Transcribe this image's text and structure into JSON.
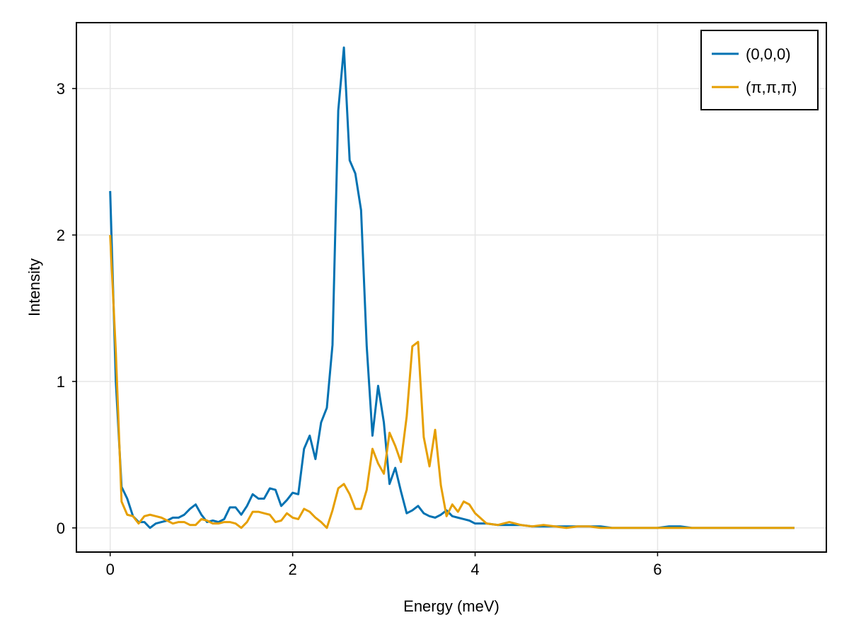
{
  "chart_data": {
    "type": "line",
    "title": "",
    "xlabel": "Energy (meV)",
    "ylabel": "Intensity",
    "xlim": [
      -0.37,
      7.85
    ],
    "ylim": [
      -0.165,
      3.45
    ],
    "xticks": [
      0,
      2,
      4,
      6
    ],
    "xtick_labels": [
      "0",
      "2",
      "4",
      "6"
    ],
    "yticks": [
      0,
      1,
      2,
      3
    ],
    "ytick_labels": [
      "0",
      "1",
      "2",
      "3"
    ],
    "grid": true,
    "legend_position": "top-right",
    "colors": {
      "series_0": "#0072b2",
      "series_1": "#e69f00",
      "grid": "#e6e6e6",
      "frame": "#000000"
    },
    "series": [
      {
        "name": "(0,0,0)",
        "color": "#0072b2",
        "x": [
          0,
          0.062,
          0.125,
          0.187,
          0.25,
          0.312,
          0.375,
          0.437,
          0.5,
          0.562,
          0.625,
          0.687,
          0.75,
          0.812,
          0.875,
          0.937,
          1.0,
          1.062,
          1.125,
          1.187,
          1.25,
          1.312,
          1.375,
          1.437,
          1.5,
          1.562,
          1.625,
          1.687,
          1.75,
          1.812,
          1.875,
          1.937,
          2.0,
          2.062,
          2.125,
          2.187,
          2.25,
          2.312,
          2.375,
          2.437,
          2.5,
          2.562,
          2.625,
          2.687,
          2.75,
          2.812,
          2.875,
          2.937,
          3.0,
          3.062,
          3.125,
          3.187,
          3.25,
          3.312,
          3.375,
          3.437,
          3.5,
          3.562,
          3.625,
          3.687,
          3.75,
          3.812,
          3.875,
          3.937,
          4.0,
          4.125,
          4.25,
          4.375,
          4.5,
          4.625,
          4.75,
          4.875,
          5.0,
          5.125,
          5.25,
          5.375,
          5.5,
          5.625,
          5.75,
          5.875,
          6.0,
          6.125,
          6.25,
          6.375,
          6.5,
          6.625,
          6.75,
          6.875,
          7.0,
          7.125,
          7.25,
          7.375,
          7.5
        ],
        "y": [
          2.3,
          1.0,
          0.28,
          0.2,
          0.08,
          0.04,
          0.04,
          0.0,
          0.03,
          0.04,
          0.05,
          0.07,
          0.07,
          0.09,
          0.13,
          0.16,
          0.09,
          0.04,
          0.05,
          0.04,
          0.06,
          0.14,
          0.14,
          0.09,
          0.15,
          0.23,
          0.2,
          0.2,
          0.27,
          0.26,
          0.15,
          0.19,
          0.24,
          0.23,
          0.54,
          0.63,
          0.47,
          0.72,
          0.82,
          1.25,
          2.85,
          3.28,
          2.51,
          2.42,
          2.17,
          1.24,
          0.63,
          0.97,
          0.72,
          0.3,
          0.41,
          0.25,
          0.1,
          0.12,
          0.15,
          0.1,
          0.08,
          0.07,
          0.09,
          0.12,
          0.08,
          0.07,
          0.06,
          0.05,
          0.03,
          0.03,
          0.02,
          0.02,
          0.02,
          0.01,
          0.01,
          0.01,
          0.01,
          0.01,
          0.01,
          0.01,
          0.0,
          0.0,
          0.0,
          0.0,
          0.0,
          0.01,
          0.01,
          0.0,
          0.0,
          0.0,
          0.0,
          0.0,
          0.0,
          0.0,
          0.0,
          0.0,
          0.0
        ]
      },
      {
        "name": "(π,π,π)",
        "color": "#e69f00",
        "x": [
          0,
          0.062,
          0.125,
          0.187,
          0.25,
          0.312,
          0.375,
          0.437,
          0.5,
          0.562,
          0.625,
          0.687,
          0.75,
          0.812,
          0.875,
          0.937,
          1.0,
          1.062,
          1.125,
          1.187,
          1.25,
          1.312,
          1.375,
          1.437,
          1.5,
          1.562,
          1.625,
          1.687,
          1.75,
          1.812,
          1.875,
          1.937,
          2.0,
          2.062,
          2.125,
          2.187,
          2.25,
          2.312,
          2.375,
          2.437,
          2.5,
          2.562,
          2.625,
          2.687,
          2.75,
          2.812,
          2.875,
          2.937,
          3.0,
          3.062,
          3.125,
          3.187,
          3.25,
          3.312,
          3.375,
          3.437,
          3.5,
          3.562,
          3.625,
          3.687,
          3.75,
          3.812,
          3.875,
          3.937,
          4.0,
          4.125,
          4.25,
          4.375,
          4.5,
          4.625,
          4.75,
          4.875,
          5.0,
          5.125,
          5.25,
          5.375,
          5.5,
          5.625,
          5.75,
          5.875,
          6.0,
          6.125,
          6.25,
          6.375,
          6.5,
          6.625,
          6.75,
          6.875,
          7.0,
          7.125,
          7.25,
          7.375,
          7.5
        ],
        "y": [
          2.0,
          1.2,
          0.18,
          0.09,
          0.08,
          0.03,
          0.08,
          0.09,
          0.08,
          0.07,
          0.05,
          0.03,
          0.04,
          0.04,
          0.02,
          0.02,
          0.06,
          0.05,
          0.03,
          0.03,
          0.04,
          0.04,
          0.03,
          0.0,
          0.04,
          0.11,
          0.11,
          0.1,
          0.09,
          0.04,
          0.05,
          0.1,
          0.07,
          0.06,
          0.13,
          0.11,
          0.07,
          0.04,
          0.0,
          0.12,
          0.27,
          0.3,
          0.23,
          0.13,
          0.13,
          0.26,
          0.54,
          0.44,
          0.37,
          0.65,
          0.56,
          0.45,
          0.76,
          1.24,
          1.27,
          0.62,
          0.42,
          0.67,
          0.29,
          0.08,
          0.16,
          0.11,
          0.18,
          0.16,
          0.1,
          0.03,
          0.02,
          0.04,
          0.02,
          0.01,
          0.02,
          0.01,
          0.0,
          0.01,
          0.01,
          0.0,
          0.0,
          0.0,
          0.0,
          0.0,
          0.0,
          0.0,
          0.0,
          0.0,
          0.0,
          0.0,
          0.0,
          0.0,
          0.0,
          0.0,
          0.0,
          0.0,
          0.0
        ]
      }
    ]
  }
}
